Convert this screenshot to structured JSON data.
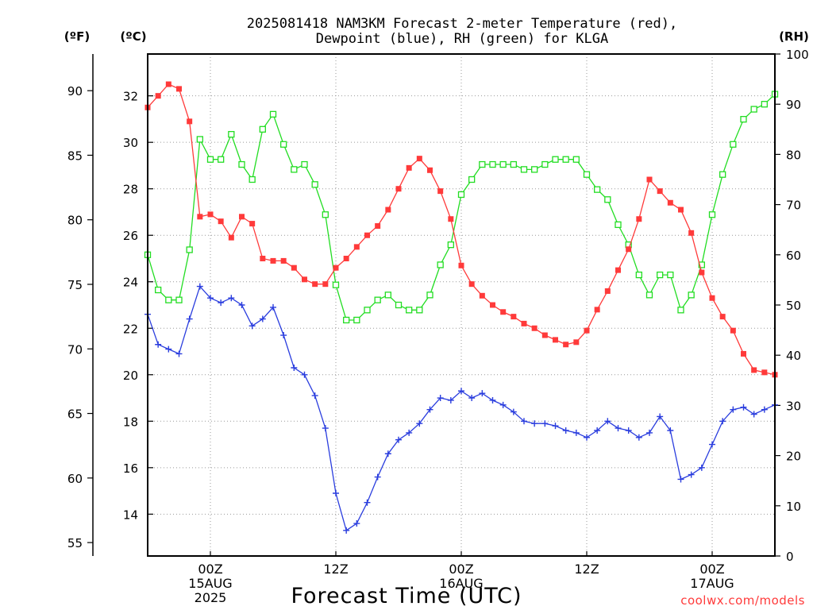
{
  "chart_data": {
    "type": "line",
    "title": "2025081418 NAM3KM Forecast 2-meter Temperature (red),",
    "subtitle": "Dewpoint (blue), RH (green) for KLGA",
    "xlabel": "Forecast Time (UTC)",
    "credit": "coolwx.com/models",
    "units": {
      "fahrenheit": "(ºF)",
      "celsius": "(ºC)",
      "rh": "(RH)"
    },
    "x_hours": [
      0,
      1,
      2,
      3,
      4,
      5,
      6,
      7,
      8,
      9,
      10,
      11,
      12,
      13,
      14,
      15,
      16,
      17,
      18,
      19,
      20,
      21,
      22,
      23,
      24,
      25,
      26,
      27,
      28,
      29,
      30,
      31,
      32,
      33,
      34,
      35,
      36,
      37,
      38,
      39,
      40,
      41,
      42,
      43,
      44,
      45,
      46,
      47,
      48,
      49,
      50,
      51,
      52,
      53,
      54,
      55,
      56,
      57,
      58,
      59,
      60
    ],
    "xlim": [
      0,
      60
    ],
    "x_ticks": [
      {
        "hour": 6,
        "lines": [
          "00Z",
          "15AUG",
          "2025"
        ]
      },
      {
        "hour": 18,
        "lines": [
          "12Z"
        ]
      },
      {
        "hour": 30,
        "lines": [
          "00Z",
          "16AUG"
        ]
      },
      {
        "hour": 42,
        "lines": [
          "12Z"
        ]
      },
      {
        "hour": 54,
        "lines": [
          "00Z",
          "17AUG"
        ]
      }
    ],
    "y_celsius": {
      "lim": [
        12.2,
        33.8
      ],
      "ticks": [
        14,
        16,
        18,
        20,
        22,
        24,
        26,
        28,
        30,
        32
      ]
    },
    "y_fahrenheit": {
      "ticks": [
        55,
        60,
        65,
        70,
        75,
        80,
        85,
        90
      ]
    },
    "y_rh": {
      "lim": [
        0,
        100
      ],
      "ticks": [
        0,
        10,
        20,
        30,
        40,
        50,
        60,
        70,
        80,
        90,
        100
      ]
    },
    "series": [
      {
        "name": "Temperature",
        "units": "°C",
        "color": "#ff3a3a",
        "marker": "filled-square",
        "axis": "left",
        "values": [
          31.5,
          32.0,
          32.5,
          32.3,
          30.9,
          26.8,
          26.9,
          26.6,
          25.9,
          26.8,
          26.5,
          25.0,
          24.9,
          24.9,
          24.6,
          24.1,
          23.9,
          23.9,
          24.6,
          25.0,
          25.5,
          26.0,
          26.4,
          27.1,
          28.0,
          28.9,
          29.3,
          28.8,
          27.9,
          26.7,
          24.7,
          23.9,
          23.4,
          23.0,
          22.7,
          22.5,
          22.2,
          22.0,
          21.7,
          21.5,
          21.3,
          21.4,
          21.9,
          22.8,
          23.6,
          24.5,
          25.4,
          26.7,
          28.4,
          27.9,
          27.4,
          27.1,
          26.1,
          24.4,
          23.3,
          22.5,
          21.9,
          20.9,
          20.2,
          20.1,
          20.0
        ]
      },
      {
        "name": "Dewpoint",
        "units": "°C",
        "color": "#2a3dde",
        "marker": "plus",
        "axis": "left",
        "values": [
          22.6,
          21.3,
          21.1,
          20.9,
          22.4,
          23.8,
          23.3,
          23.1,
          23.3,
          23.0,
          22.1,
          22.4,
          22.9,
          21.7,
          20.3,
          20.0,
          19.1,
          17.7,
          14.9,
          13.3,
          13.6,
          14.5,
          15.6,
          16.6,
          17.2,
          17.5,
          17.9,
          18.5,
          19.0,
          18.9,
          19.3,
          19.0,
          19.2,
          18.9,
          18.7,
          18.4,
          18.0,
          17.9,
          17.9,
          17.8,
          17.6,
          17.5,
          17.3,
          17.6,
          18.0,
          17.7,
          17.6,
          17.3,
          17.5,
          18.2,
          17.6,
          15.5,
          15.7,
          16.0,
          17.0,
          18.0,
          18.5,
          18.6,
          18.3,
          18.5,
          18.7
        ]
      },
      {
        "name": "RH",
        "units": "%",
        "color": "#22dd22",
        "marker": "open-square",
        "axis": "right",
        "values": [
          60,
          53,
          51,
          51,
          61,
          83,
          79,
          79,
          84,
          78,
          75,
          85,
          88,
          82,
          77,
          78,
          74,
          68,
          54,
          47,
          47,
          49,
          51,
          52,
          50,
          49,
          49,
          52,
          58,
          62,
          72,
          75,
          78,
          78,
          78,
          78,
          77,
          77,
          78,
          79,
          79,
          79,
          76,
          73,
          71,
          66,
          62,
          56,
          52,
          56,
          56,
          49,
          52,
          58,
          68,
          76,
          82,
          87,
          89,
          90,
          92
        ]
      }
    ]
  }
}
